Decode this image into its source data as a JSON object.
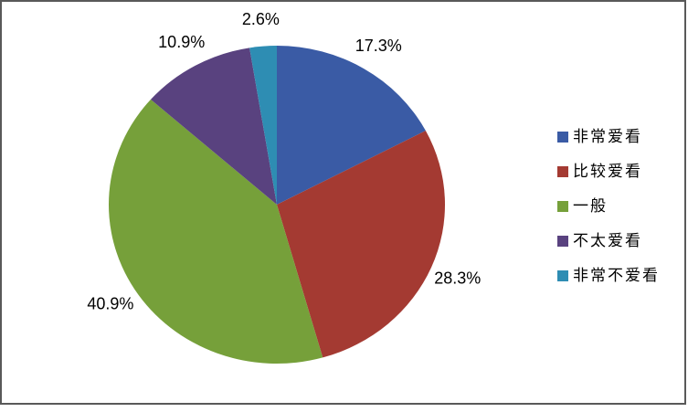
{
  "chart_data": {
    "type": "pie",
    "title": "",
    "legend_position": "right",
    "start_angle_deg": 0,
    "direction": "clockwise",
    "data_labels": "percent, outside end",
    "categories": [
      "非常爱看",
      "比较爱看",
      "一般",
      "不太爱看",
      "非常不爱看"
    ],
    "values": [
      17.3,
      28.3,
      40.9,
      10.9,
      2.6
    ],
    "slices": [
      {
        "label": "非常爱看",
        "value": 17.3,
        "display": "17.3%",
        "color": "#3A5BA5"
      },
      {
        "label": "比较爱看",
        "value": 28.3,
        "display": "28.3%",
        "color": "#A43A32"
      },
      {
        "label": "一般",
        "value": 40.9,
        "display": "40.9%",
        "color": "#76A03A"
      },
      {
        "label": "不太爱看",
        "value": 10.9,
        "display": "10.9%",
        "color": "#59427F"
      },
      {
        "label": "非常不爱看",
        "value": 2.6,
        "display": "2.6%",
        "color": "#2E8DB3"
      }
    ],
    "chart_border_color": "#595959",
    "background_color": "#FFFFFF",
    "label_color": "#000000"
  }
}
